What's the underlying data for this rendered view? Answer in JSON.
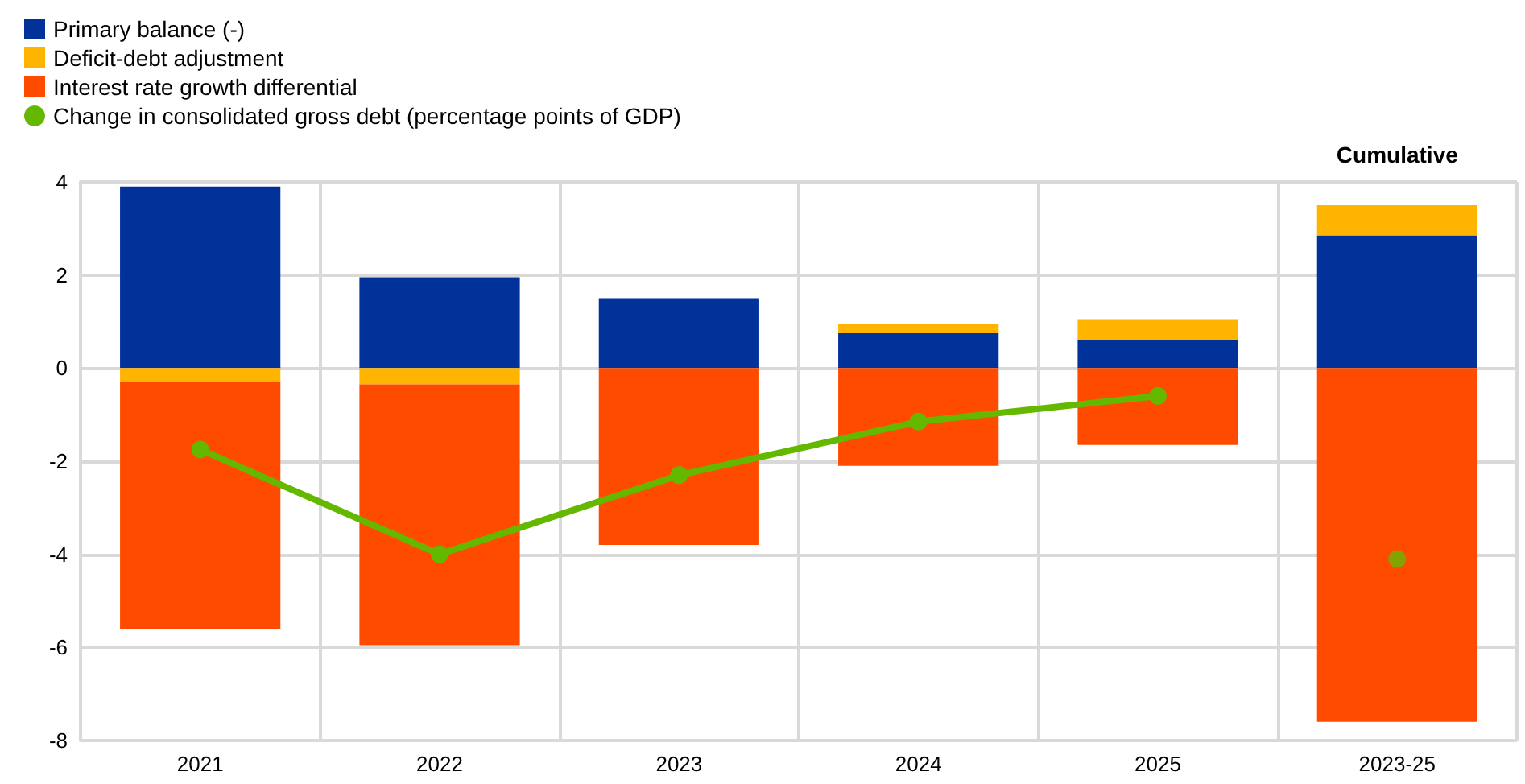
{
  "chart_data": {
    "type": "bar",
    "stacked": true,
    "categories": [
      "2021",
      "2022",
      "2023",
      "2024",
      "2025",
      "2023-25"
    ],
    "ylim": [
      -8,
      4
    ],
    "yticks": [
      -8,
      -6,
      -4,
      -2,
      0,
      2,
      4
    ],
    "grid": true,
    "legend": "top left",
    "annotations": [
      "Cumulative"
    ],
    "series": [
      {
        "name": "Primary balance (-)",
        "color": "#003299",
        "values": [
          3.9,
          1.95,
          1.5,
          0.75,
          0.6,
          2.85
        ]
      },
      {
        "name": "Deficit-debt adjustment",
        "color": "#ffb400",
        "values": [
          -0.3,
          -0.35,
          0,
          0.2,
          0.45,
          0.65
        ]
      },
      {
        "name": "Interest rate growth differential",
        "color": "#ff4b00",
        "values": [
          -5.3,
          -5.6,
          -3.8,
          -2.1,
          -1.65,
          -7.6
        ]
      },
      {
        "name": "Change in consolidated gross debt (percentage points of GDP)",
        "type": "line",
        "marker": "circle",
        "color": "#65b800",
        "values": [
          -1.75,
          -4.0,
          -2.3,
          -1.15,
          -0.6,
          null
        ]
      },
      {
        "type": "scatter",
        "marker": "circle",
        "color": "#65b800",
        "x": [
          "2023-25"
        ],
        "values": [
          -4.1
        ]
      }
    ]
  }
}
